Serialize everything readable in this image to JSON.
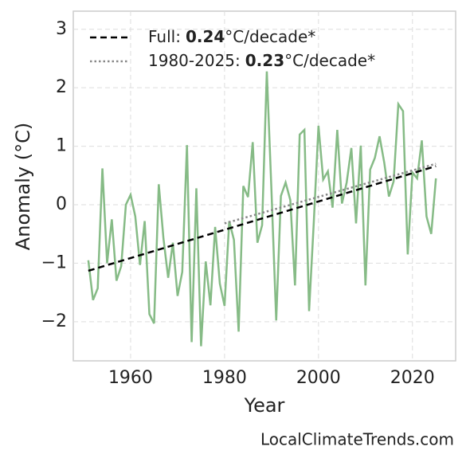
{
  "chart_data": {
    "type": "line",
    "x_label": "Year",
    "y_label": "Anomaly (°C)",
    "source": "LocalClimateTrends.com",
    "x": [
      1951,
      1952,
      1953,
      1954,
      1955,
      1956,
      1957,
      1958,
      1959,
      1960,
      1961,
      1962,
      1963,
      1964,
      1965,
      1966,
      1967,
      1968,
      1969,
      1970,
      1971,
      1972,
      1973,
      1974,
      1975,
      1976,
      1977,
      1978,
      1979,
      1980,
      1981,
      1982,
      1983,
      1984,
      1985,
      1986,
      1987,
      1988,
      1989,
      1990,
      1991,
      1992,
      1993,
      1994,
      1995,
      1996,
      1997,
      1998,
      1999,
      2000,
      2001,
      2002,
      2003,
      2004,
      2005,
      2006,
      2007,
      2008,
      2009,
      2010,
      2011,
      2012,
      2013,
      2014,
      2015,
      2016,
      2017,
      2018,
      2019,
      2020,
      2021,
      2022,
      2023,
      2024,
      2025
    ],
    "series": [
      {
        "color": "#86bb86",
        "values": [
          -0.95,
          -1.63,
          -1.43,
          0.62,
          -1.0,
          -0.25,
          -1.3,
          -1.05,
          0.0,
          0.17,
          -0.2,
          -1.03,
          -0.28,
          -1.87,
          -2.03,
          0.35,
          -0.58,
          -1.25,
          -0.65,
          -1.56,
          -1.15,
          1.02,
          -2.35,
          0.28,
          -2.42,
          -0.97,
          -1.72,
          -0.38,
          -1.35,
          -1.73,
          -0.28,
          -0.6,
          -2.17,
          0.32,
          0.13,
          1.07,
          -0.65,
          -0.35,
          2.28,
          0.22,
          -1.98,
          0.15,
          0.38,
          0.08,
          -1.38,
          1.2,
          1.28,
          -1.82,
          -0.3,
          1.35,
          0.43,
          0.57,
          -0.05,
          1.28,
          0.02,
          0.38,
          0.97,
          -0.32,
          1.01,
          -1.38,
          0.6,
          0.8,
          1.17,
          0.72,
          0.14,
          0.4,
          1.72,
          1.6,
          -0.85,
          0.55,
          0.45,
          1.1,
          -0.2,
          -0.5,
          0.45
        ]
      },
      {
        "name": "Full:",
        "slope": 0.24,
        "unit": "°C/decade*",
        "color": "#000000",
        "dash": "dashed",
        "x": [
          1951,
          2025
        ],
        "values": [
          -1.13,
          0.66
        ]
      },
      {
        "name": "1980-2025:",
        "slope": 0.23,
        "unit": "°C/decade*",
        "color": "#888888",
        "dash": "dotted",
        "x": [
          1980,
          2025
        ],
        "values": [
          -0.32,
          0.7
        ]
      }
    ],
    "xlim": [
      1947.8,
      2029.2
    ],
    "ylim": [
      -2.67,
      3.31
    ],
    "xticks": [
      1960,
      1980,
      2000,
      2020
    ],
    "yticks": [
      {
        "value": -2,
        "label": "−2"
      },
      {
        "value": -1,
        "label": "−1"
      },
      0,
      1,
      2,
      3
    ],
    "grid": true,
    "legend": "upper left"
  }
}
